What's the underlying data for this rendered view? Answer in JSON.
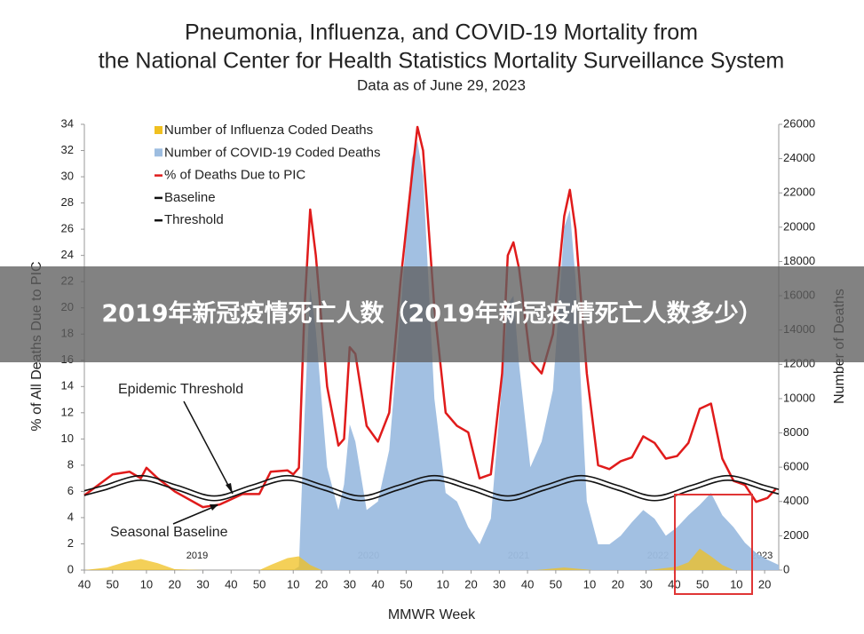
{
  "banner": "2019年新冠疫情死亡人数（2019年新冠疫情死亡人数多少）",
  "chart_data": {
    "type": "line",
    "title": [
      "Pneumonia, Influenza, and COVID-19 Mortality from",
      "the National Center for Health Statistics Mortality Surveillance System"
    ],
    "subtitle": "Data as of June 29, 2023",
    "xlabel": "MMWR Week",
    "ylabel": "% of All Deaths Due to PIC",
    "y2label": "Number of Deaths",
    "annotations": [
      "Epidemic Threshold",
      "Seasonal Baseline"
    ],
    "year_labels": [
      "2019",
      "2020",
      "2021",
      "2022",
      "2023"
    ],
    "xlim": [
      0,
      246
    ],
    "xticks": [
      {
        "value": 0,
        "label": "40"
      },
      {
        "value": 10,
        "label": "50"
      },
      {
        "value": 22,
        "label": "10"
      },
      {
        "value": 32,
        "label": "20"
      },
      {
        "value": 42,
        "label": "30"
      },
      {
        "value": 52,
        "label": "40"
      },
      {
        "value": 62,
        "label": "50"
      },
      {
        "value": 74,
        "label": "10"
      },
      {
        "value": 84,
        "label": "20"
      },
      {
        "value": 94,
        "label": "30"
      },
      {
        "value": 104,
        "label": "40"
      },
      {
        "value": 114,
        "label": "50"
      },
      {
        "value": 127,
        "label": "10"
      },
      {
        "value": 137,
        "label": "20"
      },
      {
        "value": 147,
        "label": "30"
      },
      {
        "value": 157,
        "label": "40"
      },
      {
        "value": 167,
        "label": "50"
      },
      {
        "value": 179,
        "label": "10"
      },
      {
        "value": 189,
        "label": "20"
      },
      {
        "value": 199,
        "label": "30"
      },
      {
        "value": 209,
        "label": "40"
      },
      {
        "value": 219,
        "label": "50"
      },
      {
        "value": 231,
        "label": "10"
      },
      {
        "value": 241,
        "label": "20"
      }
    ],
    "ylim": [
      0,
      34
    ],
    "yticks": [
      0,
      2,
      4,
      6,
      8,
      10,
      12,
      14,
      16,
      18,
      20,
      22,
      24,
      26,
      28,
      30,
      32,
      34
    ],
    "y2lim": [
      0,
      26000
    ],
    "y2ticks": [
      0,
      2000,
      4000,
      6000,
      8000,
      10000,
      12000,
      14000,
      16000,
      18000,
      20000,
      22000,
      24000,
      26000
    ],
    "series": [
      {
        "name": "Number of Influenza Coded Deaths",
        "color": "#f0c020",
        "style": "area",
        "axis": "y2",
        "x": [
          0,
          8,
          14,
          20,
          26,
          32,
          42,
          62,
          66,
          72,
          76,
          80,
          84,
          160,
          170,
          180,
          200,
          210,
          214,
          218,
          222,
          226,
          230,
          246
        ],
        "values": [
          0,
          150,
          450,
          650,
          400,
          50,
          0,
          0,
          300,
          700,
          800,
          300,
          0,
          0,
          150,
          0,
          0,
          200,
          450,
          1250,
          800,
          300,
          0,
          0
        ]
      },
      {
        "name": "Number of COVID-19 Coded Deaths",
        "color": "#9dbde0",
        "style": "area",
        "axis": "y2",
        "x": [
          74,
          76,
          78,
          80,
          82,
          86,
          90,
          92,
          94,
          96,
          100,
          104,
          108,
          112,
          116,
          118,
          120,
          124,
          128,
          132,
          136,
          140,
          144,
          148,
          150,
          152,
          154,
          158,
          162,
          166,
          170,
          172,
          174,
          178,
          182,
          186,
          190,
          194,
          198,
          202,
          206,
          210,
          214,
          218,
          222,
          226,
          230,
          234,
          238,
          242,
          246
        ],
        "values": [
          0,
          200,
          9000,
          16500,
          14000,
          6000,
          3500,
          5000,
          8500,
          7500,
          3500,
          4000,
          7000,
          15000,
          24000,
          25000,
          23000,
          10000,
          4500,
          4000,
          2500,
          1500,
          3000,
          11000,
          15500,
          16000,
          12000,
          6000,
          7500,
          10500,
          20000,
          21000,
          17000,
          4000,
          1500,
          1500,
          2000,
          2800,
          3500,
          3000,
          2000,
          2500,
          3200,
          3800,
          4500,
          3200,
          2500,
          1600,
          1000,
          600,
          300
        ]
      },
      {
        "name": "% of Deaths Due to PIC",
        "color": "#e01b1b",
        "style": "line",
        "axis": "y",
        "x": [
          0,
          10,
          16,
          20,
          22,
          26,
          32,
          42,
          48,
          56,
          62,
          66,
          72,
          74,
          76,
          78,
          80,
          82,
          86,
          90,
          92,
          94,
          96,
          100,
          104,
          108,
          112,
          116,
          118,
          120,
          124,
          128,
          132,
          136,
          140,
          144,
          148,
          150,
          152,
          154,
          158,
          162,
          166,
          170,
          172,
          174,
          178,
          182,
          186,
          190,
          194,
          198,
          202,
          206,
          210,
          214,
          218,
          222,
          226,
          230,
          234,
          238,
          242,
          245
        ],
        "values": [
          5.7,
          7.3,
          7.5,
          7.0,
          7.8,
          7.0,
          6.0,
          4.8,
          5.0,
          5.8,
          5.8,
          7.5,
          7.6,
          7.3,
          7.8,
          20,
          27.5,
          24,
          14,
          9.5,
          10,
          17,
          16.5,
          11,
          9.8,
          12,
          22,
          30,
          33.8,
          32,
          20,
          12,
          11,
          10.5,
          7,
          7.3,
          15,
          24,
          25,
          23,
          16,
          15,
          18,
          27,
          29,
          26,
          15,
          8,
          7.7,
          8.3,
          8.6,
          10.2,
          9.7,
          8.5,
          8.7,
          9.7,
          12.3,
          12.7,
          8.5,
          6.8,
          6.5,
          5.2,
          5.5,
          6.2
        ]
      },
      {
        "name": "Baseline",
        "color": "#111111",
        "style": "curve",
        "axis": "y",
        "x": [
          0,
          7,
          20,
          33,
          46,
          59,
          72,
          85,
          98,
          111,
          124,
          137,
          150,
          163,
          176,
          189,
          202,
          215,
          228,
          241,
          246
        ],
        "values": [
          5.7,
          6.1,
          6.85,
          6.1,
          5.3,
          6.1,
          6.85,
          6.1,
          5.3,
          6.1,
          6.85,
          6.1,
          5.3,
          6.1,
          6.85,
          6.1,
          5.3,
          6.1,
          6.85,
          6.1,
          5.8
        ]
      },
      {
        "name": "Threshold",
        "color": "#111111",
        "style": "curve",
        "axis": "y",
        "x": [
          0,
          7,
          20,
          33,
          46,
          59,
          72,
          85,
          98,
          111,
          124,
          137,
          150,
          163,
          176,
          189,
          202,
          215,
          228,
          241,
          246
        ],
        "values": [
          6.05,
          6.45,
          7.2,
          6.45,
          5.65,
          6.45,
          7.2,
          6.45,
          5.65,
          6.45,
          7.2,
          6.45,
          5.65,
          6.45,
          7.2,
          6.45,
          5.65,
          6.45,
          7.2,
          6.45,
          6.15
        ]
      }
    ]
  }
}
